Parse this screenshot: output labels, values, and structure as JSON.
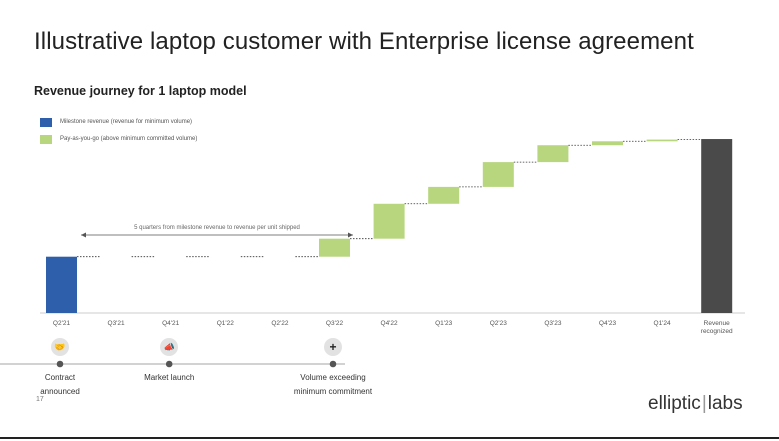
{
  "title": "Illustrative laptop customer with Enterprise license agreement",
  "subtitle": "Revenue journey for 1 laptop model",
  "legend": [
    {
      "label": "Milestone revenue (revenue for minimum volume)",
      "color": "#2e5faa"
    },
    {
      "label": "Pay-as-you-go (above minimum committed volume)",
      "color": "#b7d67d"
    }
  ],
  "chart_data": {
    "type": "bar",
    "subtype": "waterfall",
    "categories": [
      "Q2'21",
      "Q3'21",
      "Q4'21",
      "Q1'22",
      "Q2'22",
      "Q3'22",
      "Q4'22",
      "Q1'23",
      "Q2'23",
      "Q3'23",
      "Q4'23",
      "Q1'24",
      "Revenue recognized"
    ],
    "increments": [
      1.0,
      0,
      0,
      0,
      0,
      0.32,
      0.62,
      0.3,
      0.44,
      0.3,
      0.07,
      0.03,
      null
    ],
    "kinds": [
      "milestone",
      "none",
      "none",
      "none",
      "none",
      "payg",
      "payg",
      "payg",
      "payg",
      "payg",
      "payg",
      "payg",
      "total"
    ],
    "total": 3.09,
    "total_color": "#4a4a4a",
    "annotation": "5 quarters from milestone revenue to revenue per unit shipped",
    "grid": false
  },
  "timeline": [
    {
      "label": "Contract\nannounced",
      "icon": "handshake-icon"
    },
    {
      "label": "Market launch",
      "icon": "megaphone-icon"
    },
    {
      "label": "Volume exceeding\nminimum commitment",
      "icon": "plus-icon"
    }
  ],
  "footer": {
    "page_number": "17",
    "logo_part1": "elliptic",
    "logo_sep": "|",
    "logo_part2": "labs"
  }
}
